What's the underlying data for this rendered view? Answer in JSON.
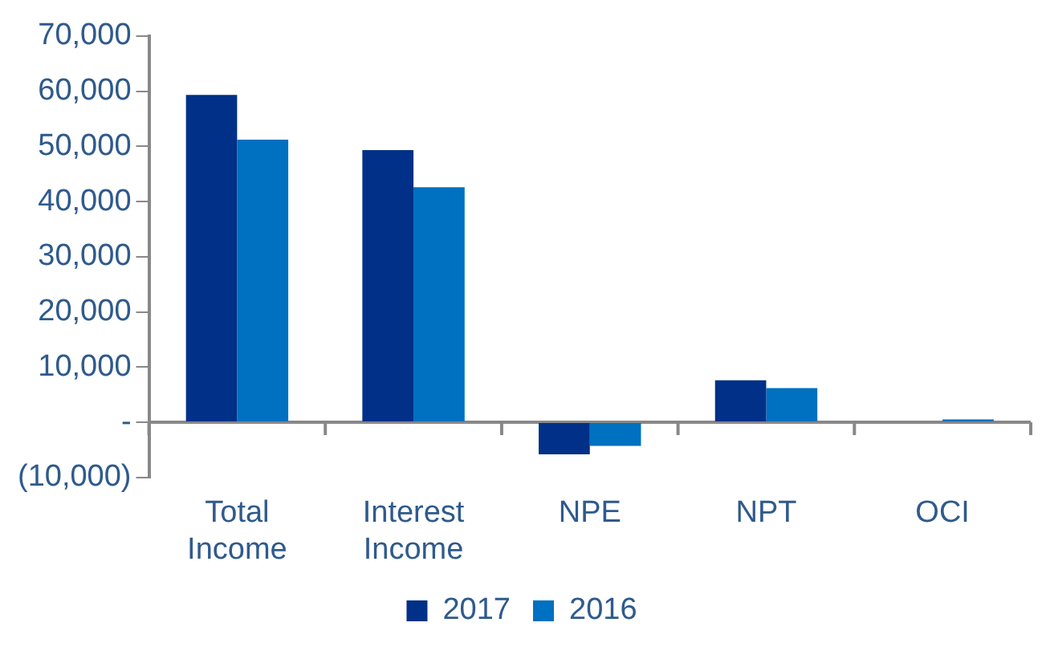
{
  "chart_data": {
    "type": "bar",
    "categories": [
      "Total Income",
      "Interest Income",
      "NPE",
      "NPT",
      "OCI"
    ],
    "series": [
      {
        "name": "2017",
        "color": "#003087",
        "values": [
          59300,
          49300,
          -5800,
          7600,
          0
        ]
      },
      {
        "name": "2016",
        "color": "#0070c0",
        "values": [
          51200,
          42600,
          -4300,
          6200,
          500
        ]
      }
    ],
    "ylim": [
      -10000,
      70000
    ],
    "yticks": [
      {
        "value": -10000,
        "label": "(10,000)"
      },
      {
        "value": 0,
        "label": "-"
      },
      {
        "value": 10000,
        "label": "10,000"
      },
      {
        "value": 20000,
        "label": "20,000"
      },
      {
        "value": 30000,
        "label": "30,000"
      },
      {
        "value": 40000,
        "label": "40,000"
      },
      {
        "value": 50000,
        "label": "50,000"
      },
      {
        "value": 60000,
        "label": "60,000"
      },
      {
        "value": 70000,
        "label": "70,000"
      }
    ],
    "grid": false,
    "legend": "bottom"
  }
}
